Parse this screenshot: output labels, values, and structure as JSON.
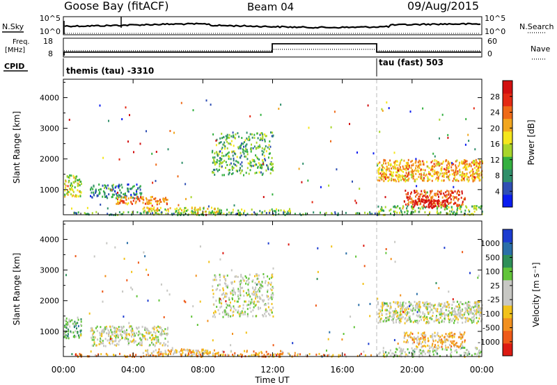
{
  "header": {
    "station": "Goose Bay (fitACF)",
    "beam": "Beam 04",
    "date": "09/Aug/2015"
  },
  "top_panels": {
    "nsky": {
      "label": "N.Sky",
      "tick_top": "10^5",
      "tick_bottom": "10^0"
    },
    "nsearch": {
      "label": "N.Search",
      "tick_top": "10^5",
      "tick_bottom": "10^0"
    },
    "freq": {
      "label_line1": "Freq.",
      "label_line2": "[MHz]",
      "tick_top": "18",
      "tick_bottom": "8"
    },
    "nave": {
      "label": "Nave",
      "tick_top": "60",
      "tick_bottom": "0"
    },
    "cpid": {
      "label": "CPID",
      "segment_1": "themis (tau) -3310",
      "segment_2": "tau (fast) 503"
    }
  },
  "chart_data": [
    {
      "type": "heatmap",
      "name": "power",
      "ylabel": "Slant Range [km]",
      "xlim_hours": [
        0,
        24
      ],
      "ylim_km": [
        180,
        4600
      ],
      "y_ticks": [
        1000,
        2000,
        3000,
        4000
      ],
      "colorbar": {
        "label": "Power [dB]",
        "ticks": [
          "4",
          "8",
          "12",
          "16",
          "20",
          "24",
          "28"
        ],
        "colors": [
          "#0a1cf0",
          "#2f4fb4",
          "#2f8f6a",
          "#34b040",
          "#a8d52a",
          "#f4e61c",
          "#f2a61e",
          "#ee6a18",
          "#e42a14",
          "#d21010"
        ]
      },
      "regions": [
        {
          "t": [
            0.0,
            1.0
          ],
          "r": [
            800,
            1500
          ],
          "level": 0.5,
          "density": 0.6
        },
        {
          "t": [
            1.5,
            4.5
          ],
          "r": [
            750,
            1200
          ],
          "level": 0.25,
          "density": 0.5
        },
        {
          "t": [
            3.0,
            6.0
          ],
          "r": [
            550,
            800
          ],
          "level": 0.7,
          "density": 0.7
        },
        {
          "t": [
            4.5,
            9.0
          ],
          "r": [
            250,
            450
          ],
          "level": 0.55,
          "density": 0.55
        },
        {
          "t": [
            8.5,
            12.0
          ],
          "r": [
            1500,
            2900
          ],
          "level": 0.35,
          "density": 0.35
        },
        {
          "t": [
            7.0,
            13.0
          ],
          "r": [
            200,
            400
          ],
          "level": 0.4,
          "density": 0.3
        },
        {
          "t": [
            18.0,
            24.0
          ],
          "r": [
            1300,
            2000
          ],
          "level": 0.65,
          "density": 0.7
        },
        {
          "t": [
            19.5,
            23.0
          ],
          "r": [
            500,
            1000
          ],
          "level": 0.8,
          "density": 0.6
        },
        {
          "t": [
            20.0,
            22.0
          ],
          "r": [
            450,
            700
          ],
          "level": 0.97,
          "density": 0.8
        },
        {
          "t": [
            18.0,
            24.0
          ],
          "r": [
            200,
            500
          ],
          "level": 0.4,
          "density": 0.4
        },
        {
          "t": [
            0.5,
            18.0
          ],
          "r": [
            200,
            300
          ],
          "level": 0.3,
          "density": 0.35
        }
      ]
    },
    {
      "type": "heatmap",
      "name": "velocity",
      "ylabel": "Slant Range [km]",
      "xlabel": "Time UT",
      "xlim_hours": [
        0,
        24
      ],
      "ylim_km": [
        180,
        4600
      ],
      "y_ticks": [
        1000,
        2000,
        3000,
        4000
      ],
      "x_ticks": [
        "00:00",
        "04:00",
        "08:00",
        "12:00",
        "16:00",
        "20:00",
        "00:00"
      ],
      "colorbar": {
        "label": "Velocity [m s⁻¹]",
        "ticks": [
          "1000",
          "500",
          "100",
          "25",
          "-25",
          "-100",
          "-500",
          "-1000"
        ],
        "colors": [
          "#1c3cd0",
          "#2a6fa8",
          "#2e8f58",
          "#62c43a",
          "#c7c7c3",
          "#c7c7c3",
          "#f2c21a",
          "#f2901e",
          "#ee5a18",
          "#dc1a12"
        ]
      },
      "regions": [
        {
          "t": [
            0.0,
            1.0
          ],
          "r": [
            800,
            1500
          ],
          "level": 0.35,
          "density": 0.6
        },
        {
          "t": [
            1.5,
            6.0
          ],
          "r": [
            550,
            1200
          ],
          "level": 0.5,
          "density": 0.55
        },
        {
          "t": [
            4.5,
            9.0
          ],
          "r": [
            250,
            450
          ],
          "level": 0.6,
          "density": 0.55
        },
        {
          "t": [
            8.5,
            12.0
          ],
          "r": [
            1500,
            2900
          ],
          "level": 0.48,
          "density": 0.35
        },
        {
          "t": [
            7.0,
            13.0
          ],
          "r": [
            200,
            400
          ],
          "level": 0.7,
          "density": 0.3
        },
        {
          "t": [
            18.0,
            24.0
          ],
          "r": [
            1300,
            2000
          ],
          "level": 0.5,
          "density": 0.7
        },
        {
          "t": [
            19.5,
            23.0
          ],
          "r": [
            500,
            1000
          ],
          "level": 0.65,
          "density": 0.6
        },
        {
          "t": [
            18.0,
            24.0
          ],
          "r": [
            200,
            500
          ],
          "level": 0.45,
          "density": 0.4
        },
        {
          "t": [
            0.5,
            18.0
          ],
          "r": [
            200,
            300
          ],
          "level": 0.75,
          "density": 0.35
        }
      ]
    }
  ]
}
